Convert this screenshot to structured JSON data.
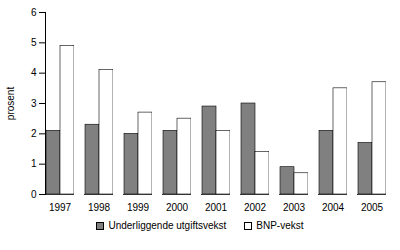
{
  "chart_data": {
    "type": "bar",
    "y_label": "prosent",
    "categories": [
      "1997",
      "1998",
      "1999",
      "2000",
      "2001",
      "2002",
      "2003",
      "2004",
      "2005"
    ],
    "series": [
      {
        "name": "Underliggende utgiftsvekst",
        "color": "#808080",
        "values": [
          2.1,
          2.3,
          2.0,
          2.1,
          2.9,
          3.0,
          0.9,
          2.1,
          1.7
        ]
      },
      {
        "name": "BNP-vekst",
        "color": "#ffffff",
        "values": [
          4.9,
          4.1,
          2.7,
          2.5,
          2.1,
          1.4,
          0.7,
          3.5,
          3.7
        ]
      }
    ],
    "ylim": [
      0,
      6
    ],
    "yticks": [
      0,
      1,
      2,
      3,
      4,
      5,
      6
    ],
    "grid": false,
    "legend": "bottom"
  }
}
